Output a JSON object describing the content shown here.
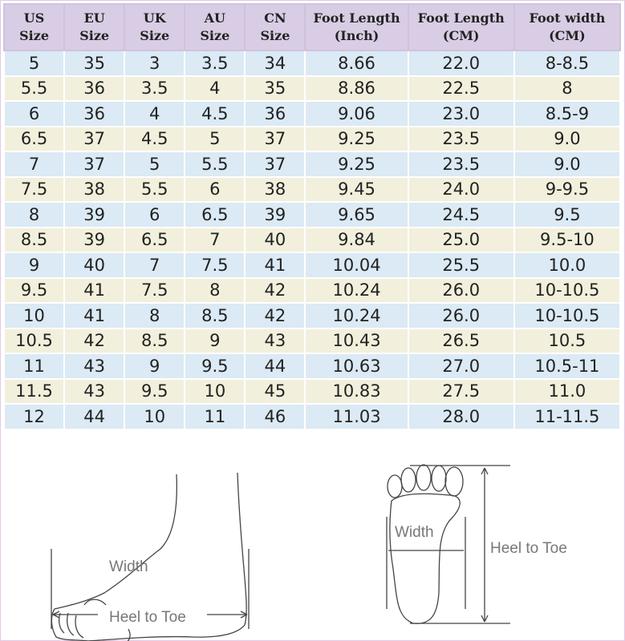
{
  "headers": [
    [
      "US",
      "Size"
    ],
    [
      "EU",
      "Size"
    ],
    [
      "UK",
      "Size"
    ],
    [
      "AU",
      "Size"
    ],
    [
      "CN",
      "Size"
    ],
    [
      "Foot Length",
      "(Inch)"
    ],
    [
      "Foot Length",
      "(CM)"
    ],
    [
      "Foot width",
      "(CM)"
    ]
  ],
  "rows": [
    [
      "5",
      "35",
      "3",
      "3.5",
      "34",
      "8.66",
      "22.0",
      "8-8.5"
    ],
    [
      "5.5",
      "36",
      "3.5",
      "4",
      "35",
      "8.86",
      "22.5",
      "8"
    ],
    [
      "6",
      "36",
      "4",
      "4.5",
      "36",
      "9.06",
      "23.0",
      "8.5-9"
    ],
    [
      "6.5",
      "37",
      "4.5",
      "5",
      "37",
      "9.25",
      "23.5",
      "9.0"
    ],
    [
      "7",
      "37",
      "5",
      "5.5",
      "37",
      "9.25",
      "23.5",
      "9.0"
    ],
    [
      "7.5",
      "38",
      "5.5",
      "6",
      "38",
      "9.45",
      "24.0",
      "9-9.5"
    ],
    [
      "8",
      "39",
      "6",
      "6.5",
      "39",
      "9.65",
      "24.5",
      "9.5"
    ],
    [
      "8.5",
      "39",
      "6.5",
      "7",
      "40",
      "9.84",
      "25.0",
      "9.5-10"
    ],
    [
      "9",
      "40",
      "7",
      "7.5",
      "41",
      "10.04",
      "25.5",
      "10.0"
    ],
    [
      "9.5",
      "41",
      "7.5",
      "8",
      "42",
      "10.24",
      "26.0",
      "10-10.5"
    ],
    [
      "10",
      "41",
      "8",
      "8.5",
      "42",
      "10.24",
      "26.0",
      "10-10.5"
    ],
    [
      "10.5",
      "42",
      "8.5",
      "9",
      "43",
      "10.43",
      "26.5",
      "10.5"
    ],
    [
      "11",
      "43",
      "9",
      "9.5",
      "44",
      "10.63",
      "27.0",
      "10.5-11"
    ],
    [
      "11.5",
      "43",
      "9.5",
      "10",
      "45",
      "10.83",
      "27.5",
      "11.0"
    ],
    [
      "12",
      "44",
      "10",
      "11",
      "46",
      "11.03",
      "28.0",
      "11-11.5"
    ]
  ],
  "diagram": {
    "side_width": "Width",
    "side_length": "Heel to Toe",
    "sole_width": "Width",
    "sole_length": "Heel to Toe"
  }
}
